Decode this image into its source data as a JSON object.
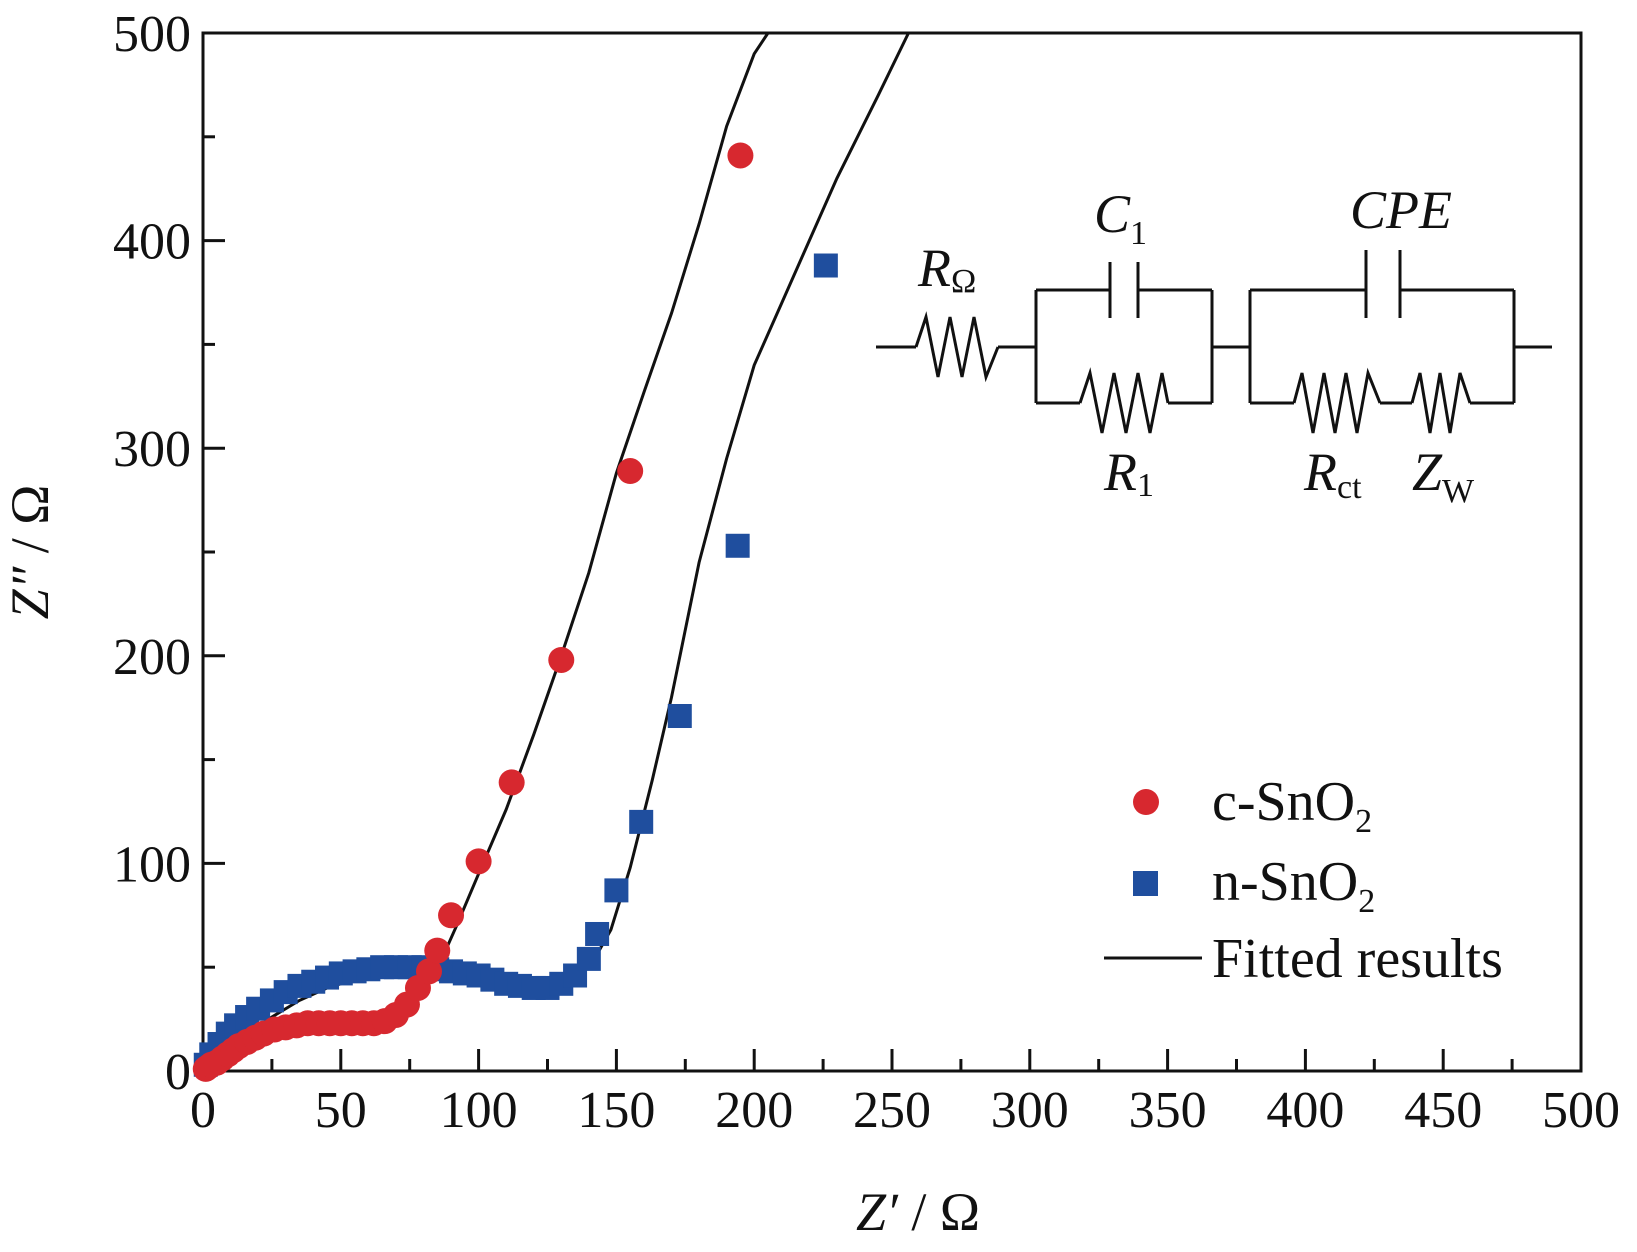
{
  "chart_data": {
    "type": "scatter",
    "xlabel_main": "Z′",
    "xlabel_unit": " / Ω",
    "ylabel_main": "Z″",
    "ylabel_unit": " / Ω",
    "xlim": [
      0,
      500
    ],
    "ylim": [
      0,
      500
    ],
    "x_ticks": [
      0,
      50,
      100,
      150,
      200,
      250,
      300,
      350,
      400,
      450,
      500
    ],
    "y_ticks": [
      0,
      100,
      200,
      300,
      400,
      500
    ],
    "legend_position": "bottom-right",
    "series": [
      {
        "name": "c-SnO",
        "name_sub": "2",
        "marker": "circle",
        "color": "#d7282f",
        "points": [
          [
            1,
            1
          ],
          [
            2,
            2
          ],
          [
            3,
            3
          ],
          [
            5,
            4
          ],
          [
            7,
            6
          ],
          [
            9,
            8
          ],
          [
            11,
            10
          ],
          [
            13,
            12
          ],
          [
            16,
            14
          ],
          [
            19,
            16
          ],
          [
            22,
            18
          ],
          [
            26,
            20
          ],
          [
            30,
            21
          ],
          [
            34,
            22
          ],
          [
            38,
            23
          ],
          [
            42,
            23
          ],
          [
            46,
            23
          ],
          [
            50,
            23
          ],
          [
            54,
            23
          ],
          [
            58,
            23
          ],
          [
            62,
            23
          ],
          [
            66,
            24
          ],
          [
            70,
            27
          ],
          [
            74,
            32
          ],
          [
            78,
            40
          ],
          [
            82,
            48
          ],
          [
            85,
            58
          ],
          [
            90,
            75
          ],
          [
            100,
            101
          ],
          [
            112,
            139
          ],
          [
            130,
            198
          ],
          [
            155,
            289
          ],
          [
            195,
            441
          ]
        ]
      },
      {
        "name": "n-SnO",
        "name_sub": "2",
        "marker": "square",
        "color": "#1f4e9e",
        "points": [
          [
            1,
            3
          ],
          [
            3,
            8
          ],
          [
            6,
            13
          ],
          [
            9,
            18
          ],
          [
            12,
            22
          ],
          [
            16,
            26
          ],
          [
            20,
            30
          ],
          [
            25,
            34
          ],
          [
            30,
            38
          ],
          [
            35,
            41
          ],
          [
            40,
            43
          ],
          [
            45,
            45
          ],
          [
            50,
            47
          ],
          [
            55,
            48
          ],
          [
            60,
            49
          ],
          [
            65,
            50
          ],
          [
            70,
            50
          ],
          [
            75,
            50
          ],
          [
            80,
            50
          ],
          [
            85,
            49
          ],
          [
            90,
            48
          ],
          [
            95,
            47
          ],
          [
            100,
            46
          ],
          [
            105,
            44
          ],
          [
            110,
            42
          ],
          [
            115,
            41
          ],
          [
            120,
            40
          ],
          [
            125,
            40
          ],
          [
            130,
            42
          ],
          [
            135,
            46
          ],
          [
            140,
            54
          ],
          [
            143,
            66
          ],
          [
            150,
            87
          ],
          [
            159,
            120
          ],
          [
            173,
            171
          ],
          [
            194,
            253
          ],
          [
            226,
            388
          ]
        ]
      },
      {
        "name": "Fitted results",
        "marker": "line",
        "color": "#111111",
        "curves": [
          [
            [
              5,
              3
            ],
            [
              10,
              6
            ],
            [
              15,
              9
            ],
            [
              20,
              13
            ],
            [
              30,
              17
            ],
            [
              40,
              19
            ],
            [
              50,
              20
            ],
            [
              60,
              21
            ],
            [
              68,
              23
            ],
            [
              74,
              28
            ],
            [
              80,
              38
            ],
            [
              86,
              52
            ],
            [
              92,
              70
            ],
            [
              100,
              95
            ],
            [
              110,
              126
            ],
            [
              120,
              162
            ],
            [
              130,
              200
            ],
            [
              140,
              240
            ],
            [
              150,
              288
            ],
            [
              160,
              327
            ],
            [
              170,
              365
            ],
            [
              180,
              408
            ],
            [
              190,
              455
            ],
            [
              200,
              490
            ],
            [
              205,
              500
            ]
          ],
          [
            [
              3,
              2
            ],
            [
              8,
              8
            ],
            [
              15,
              16
            ],
            [
              25,
              26
            ],
            [
              35,
              34
            ],
            [
              45,
              40
            ],
            [
              55,
              44
            ],
            [
              70,
              47
            ],
            [
              85,
              48
            ],
            [
              100,
              47
            ],
            [
              115,
              45
            ],
            [
              125,
              44
            ],
            [
              135,
              46
            ],
            [
              142,
              54
            ],
            [
              148,
              68
            ],
            [
              155,
              98
            ],
            [
              163,
              140
            ],
            [
              170,
              180
            ],
            [
              180,
              245
            ],
            [
              190,
              295
            ],
            [
              200,
              340
            ],
            [
              210,
              370
            ],
            [
              220,
              400
            ],
            [
              230,
              430
            ],
            [
              245,
              470
            ],
            [
              256,
              500
            ]
          ]
        ]
      }
    ],
    "circuit": {
      "r_omega": "R",
      "r_omega_sub": "Ω",
      "c1": "C",
      "c1_sub": "1",
      "cpe": "CPE",
      "r1": "R",
      "r1_sub": "1",
      "rct": "R",
      "rct_sub": "ct",
      "zw": "Z",
      "zw_sub": "W"
    }
  }
}
